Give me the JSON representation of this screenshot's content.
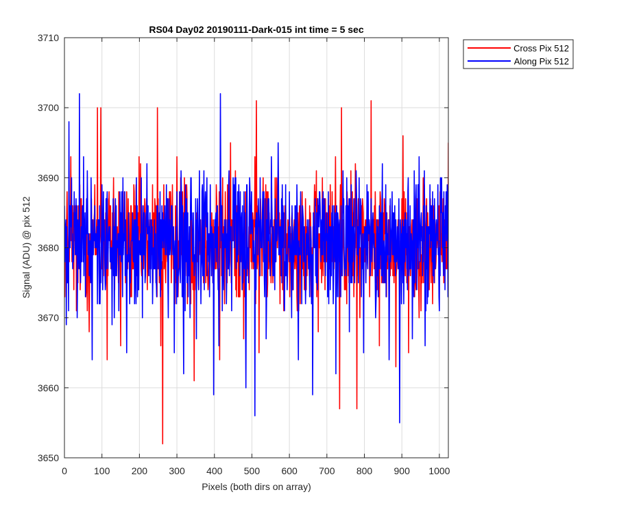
{
  "chart_data": {
    "type": "line",
    "title": "RS04 Day02 20190111-Dark-015 int time = 5 sec",
    "xlabel": "Pixels (both dirs on array)",
    "ylabel": "Signal (ADU) @ pix 512",
    "xlim": [
      0,
      1024
    ],
    "ylim": [
      3650,
      3710
    ],
    "xticks": [
      0,
      100,
      200,
      300,
      400,
      500,
      600,
      700,
      800,
      900,
      1000
    ],
    "yticks": [
      3650,
      3660,
      3670,
      3680,
      3690,
      3700,
      3710
    ],
    "grid": true,
    "legend_position": "outside-top-right",
    "series": [
      {
        "name": "Cross Pix 512",
        "color": "#ff0000",
        "mean": 3681,
        "points": [
          [
            0,
            3680
          ],
          [
            17,
            3693
          ],
          [
            32,
            3671
          ],
          [
            48,
            3686
          ],
          [
            66,
            3668
          ],
          [
            88,
            3700
          ],
          [
            97,
            3700
          ],
          [
            114,
            3664
          ],
          [
            131,
            3690
          ],
          [
            150,
            3666
          ],
          [
            175,
            3678
          ],
          [
            199,
            3693
          ],
          [
            224,
            3677
          ],
          [
            236,
            3675
          ],
          [
            248,
            3700
          ],
          [
            257,
            3666
          ],
          [
            262,
            3652
          ],
          [
            285,
            3675
          ],
          [
            300,
            3693
          ],
          [
            320,
            3690
          ],
          [
            346,
            3661
          ],
          [
            368,
            3688
          ],
          [
            392,
            3676
          ],
          [
            414,
            3664
          ],
          [
            427,
            3672
          ],
          [
            443,
            3695
          ],
          [
            460,
            3686
          ],
          [
            478,
            3667
          ],
          [
            508,
            3693
          ],
          [
            512,
            3701
          ],
          [
            519,
            3665
          ],
          [
            540,
            3688
          ],
          [
            562,
            3690
          ],
          [
            585,
            3671
          ],
          [
            609,
            3677
          ],
          [
            634,
            3688
          ],
          [
            653,
            3676
          ],
          [
            677,
            3668
          ],
          [
            700,
            3685
          ],
          [
            723,
            3693
          ],
          [
            734,
            3657
          ],
          [
            739,
            3700
          ],
          [
            750,
            3674
          ],
          [
            776,
            3692
          ],
          [
            780,
            3657
          ],
          [
            801,
            3678
          ],
          [
            818,
            3701
          ],
          [
            840,
            3666
          ],
          [
            860,
            3685
          ],
          [
            884,
            3663
          ],
          [
            903,
            3696
          ],
          [
            918,
            3665
          ],
          [
            938,
            3674
          ],
          [
            960,
            3689
          ],
          [
            982,
            3672
          ],
          [
            1002,
            3688
          ],
          [
            1024,
            3695
          ]
        ]
      },
      {
        "name": "Along Pix 512",
        "color": "#0000ff",
        "mean": 3681,
        "points": [
          [
            0,
            3686
          ],
          [
            5,
            3669
          ],
          [
            12,
            3698
          ],
          [
            26,
            3688
          ],
          [
            40,
            3702
          ],
          [
            56,
            3673
          ],
          [
            74,
            3664
          ],
          [
            94,
            3686
          ],
          [
            108,
            3676
          ],
          [
            127,
            3669
          ],
          [
            148,
            3688
          ],
          [
            166,
            3665
          ],
          [
            190,
            3682
          ],
          [
            208,
            3670
          ],
          [
            220,
            3692
          ],
          [
            236,
            3676
          ],
          [
            256,
            3673
          ],
          [
            277,
            3670
          ],
          [
            293,
            3665
          ],
          [
            305,
            3677
          ],
          [
            318,
            3662
          ],
          [
            336,
            3685
          ],
          [
            352,
            3667
          ],
          [
            372,
            3691
          ],
          [
            385,
            3678
          ],
          [
            398,
            3659
          ],
          [
            412,
            3666
          ],
          [
            416,
            3702
          ],
          [
            430,
            3682
          ],
          [
            446,
            3671
          ],
          [
            466,
            3685
          ],
          [
            484,
            3660
          ],
          [
            508,
            3656
          ],
          [
            520,
            3683
          ],
          [
            538,
            3667
          ],
          [
            552,
            3693
          ],
          [
            570,
            3695
          ],
          [
            586,
            3672
          ],
          [
            602,
            3683
          ],
          [
            624,
            3664
          ],
          [
            648,
            3684
          ],
          [
            662,
            3659
          ],
          [
            680,
            3688
          ],
          [
            705,
            3672
          ],
          [
            724,
            3662
          ],
          [
            744,
            3685
          ],
          [
            760,
            3668
          ],
          [
            778,
            3691
          ],
          [
            798,
            3665
          ],
          [
            812,
            3682
          ],
          [
            830,
            3670
          ],
          [
            848,
            3692
          ],
          [
            866,
            3664
          ],
          [
            880,
            3678
          ],
          [
            894,
            3655
          ],
          [
            910,
            3680
          ],
          [
            928,
            3667
          ],
          [
            946,
            3693
          ],
          [
            962,
            3666
          ],
          [
            982,
            3688
          ],
          [
            1000,
            3671
          ],
          [
            1024,
            3684
          ]
        ]
      }
    ]
  }
}
